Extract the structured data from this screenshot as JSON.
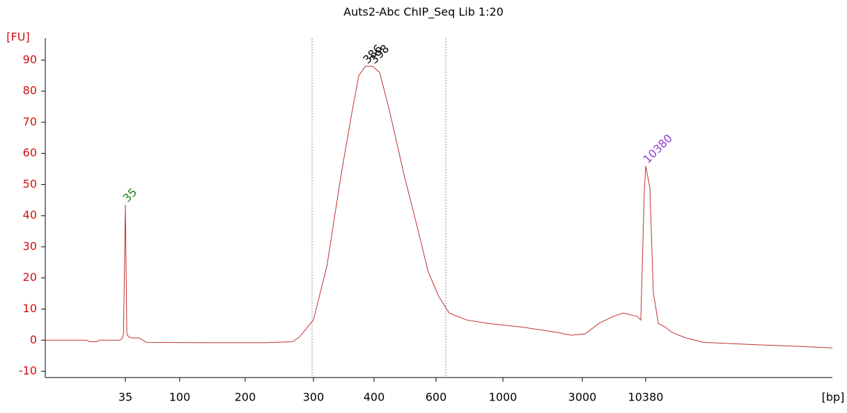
{
  "chart_data": {
    "type": "line",
    "title": "Auts2-Abc ChIP_Seq Lib 1:20",
    "y_label": "[FU]",
    "x_label": "[bp]",
    "color": "#c03030",
    "x": [
      10,
      19.2,
      20,
      22.6,
      23,
      32.1,
      33.2,
      34,
      35,
      36,
      37.4,
      40,
      45.8,
      52.4,
      136,
      225,
      265,
      276,
      300,
      320,
      342,
      360,
      372,
      384,
      397,
      415,
      444,
      487,
      533,
      570,
      613,
      664,
      758,
      890,
      1310,
      2120,
      2570,
      3170,
      4160,
      5470,
      6700,
      8810,
      9440,
      10070,
      10380,
      10630,
      10840,
      11150,
      11600,
      12060,
      13060,
      14420,
      16890,
      20590,
      25100,
      30000
    ],
    "values": [
      0,
      0,
      -0.5,
      -0.5,
      0,
      0,
      0.5,
      2,
      43.5,
      2,
      1,
      0.7,
      0.7,
      -0.7,
      -0.8,
      -0.8,
      -0.5,
      1,
      6.5,
      24,
      53,
      73,
      85,
      88,
      88,
      86,
      73,
      53,
      35.5,
      22,
      14,
      8.7,
      6.5,
      5.4,
      4.2,
      2.5,
      1.6,
      2,
      5.4,
      7.6,
      8.7,
      7.6,
      6.5,
      46.7,
      56,
      49,
      15.4,
      5.4,
      4.2,
      2.5,
      0.7,
      -0.7,
      -1.1,
      -1.6,
      -2,
      -2.5
    ],
    "xlim": [
      10,
      30000
    ],
    "xticks": [
      35,
      100,
      200,
      300,
      400,
      600,
      1000,
      3000,
      10380
    ],
    "ylim": [
      -12,
      97
    ],
    "yticks": [
      -10,
      0,
      10,
      20,
      30,
      40,
      50,
      60,
      70,
      80,
      90
    ],
    "annotations": [
      {
        "text": "35",
        "x": 35,
        "y": 43.5,
        "color": "#1a8a1a"
      },
      {
        "text": "386",
        "x": 384,
        "y": 88,
        "color": "#000000"
      },
      {
        "text": "398",
        "x": 397,
        "y": 88,
        "color": "#000000"
      },
      {
        "text": "10380",
        "x": 10380,
        "y": 56,
        "color": "#9a3ccf"
      }
    ]
  }
}
